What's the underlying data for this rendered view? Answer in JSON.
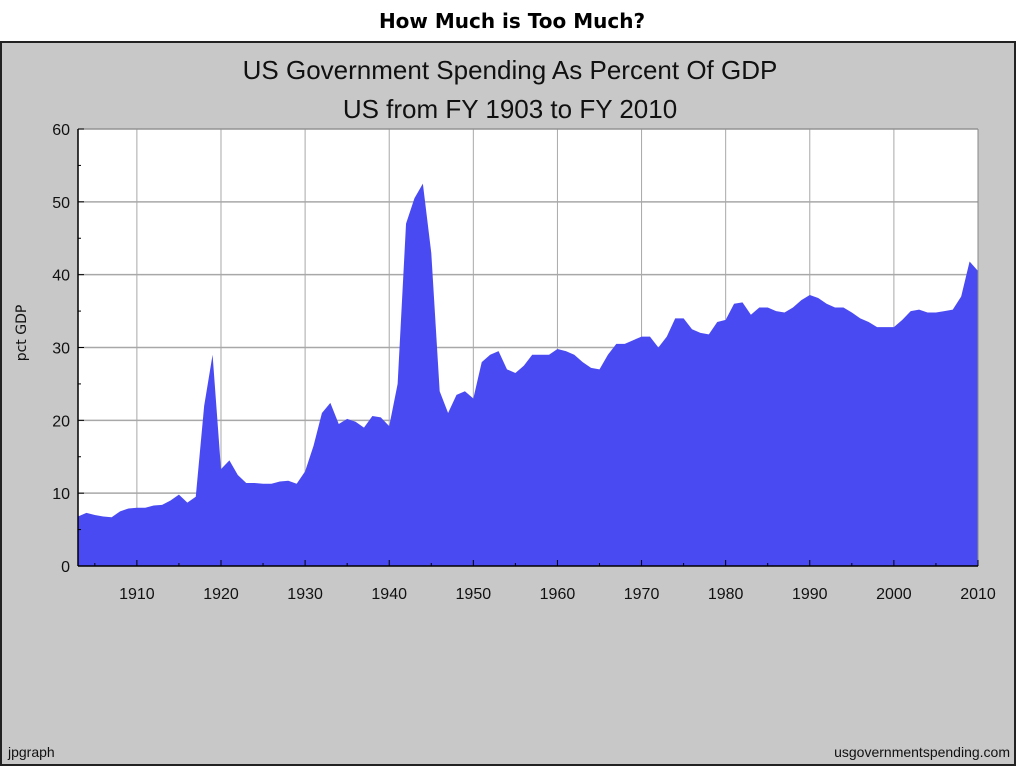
{
  "slide": {
    "title": "How Much is Too Much?"
  },
  "colors": {
    "area_fill": "#4a4af2",
    "plot_bg": "#ffffff",
    "frame_bg": "#c8c8c8",
    "grid": "#a8a8a8"
  },
  "footer": {
    "left": "jpgraph",
    "right": "usgovernmentspending.com"
  },
  "chart_data": {
    "type": "area",
    "title": "US Government Spending As Percent Of GDP",
    "subtitle": "US from FY 1903 to FY 2010",
    "xlabel": "",
    "ylabel": "pct GDP",
    "xlim": [
      1903,
      2010
    ],
    "ylim": [
      0,
      60
    ],
    "x_ticks": [
      1910,
      1920,
      1930,
      1940,
      1950,
      1960,
      1970,
      1980,
      1990,
      2000,
      2010
    ],
    "y_ticks": [
      0,
      10,
      20,
      30,
      40,
      50,
      60
    ],
    "grid": true,
    "legend": "none",
    "series": [
      {
        "x": [
          1903,
          1904,
          1905,
          1906,
          1907,
          1908,
          1909,
          1910,
          1911,
          1912,
          1913,
          1914,
          1915,
          1916,
          1917,
          1918,
          1919,
          1920,
          1921,
          1922,
          1923,
          1924,
          1925,
          1926,
          1927,
          1928,
          1929,
          1930,
          1931,
          1932,
          1933,
          1934,
          1935,
          1936,
          1937,
          1938,
          1939,
          1940,
          1941,
          1942,
          1943,
          1944,
          1945,
          1946,
          1947,
          1948,
          1949,
          1950,
          1951,
          1952,
          1953,
          1954,
          1955,
          1956,
          1957,
          1958,
          1959,
          1960,
          1961,
          1962,
          1963,
          1964,
          1965,
          1966,
          1967,
          1968,
          1969,
          1970,
          1971,
          1972,
          1973,
          1974,
          1975,
          1976,
          1977,
          1978,
          1979,
          1980,
          1981,
          1982,
          1983,
          1984,
          1985,
          1986,
          1987,
          1988,
          1989,
          1990,
          1991,
          1992,
          1993,
          1994,
          1995,
          1996,
          1997,
          1998,
          1999,
          2000,
          2001,
          2002,
          2003,
          2004,
          2005,
          2006,
          2007,
          2008,
          2009,
          2010
        ],
        "values": [
          6.8,
          7.3,
          7.0,
          6.8,
          6.7,
          7.5,
          7.9,
          8.0,
          8.0,
          8.3,
          8.4,
          9.0,
          9.8,
          8.7,
          9.5,
          22.0,
          29.0,
          13.3,
          14.5,
          12.5,
          11.4,
          11.4,
          11.3,
          11.3,
          11.6,
          11.7,
          11.3,
          13.0,
          16.5,
          21.0,
          22.4,
          19.5,
          20.2,
          19.8,
          19.0,
          20.6,
          20.4,
          19.2,
          25.0,
          47.0,
          50.5,
          52.5,
          43.0,
          24.0,
          21.0,
          23.5,
          24.0,
          23.0,
          28.0,
          29.0,
          29.5,
          27.0,
          26.5,
          27.5,
          29.0,
          29.0,
          29.0,
          29.8,
          29.5,
          29.0,
          28.0,
          27.2,
          27.0,
          29.0,
          30.5,
          30.5,
          31.0,
          31.5,
          31.5,
          30.0,
          31.5,
          34.0,
          34.0,
          32.5,
          32.0,
          31.8,
          33.5,
          33.8,
          36.0,
          36.2,
          34.5,
          35.5,
          35.5,
          35.0,
          34.8,
          35.5,
          36.5,
          37.2,
          36.8,
          36.0,
          35.5,
          35.5,
          34.8,
          34.0,
          33.5,
          32.8,
          32.8,
          32.8,
          33.8,
          35.0,
          35.2,
          34.8,
          34.8,
          35.0,
          35.2,
          37.0,
          41.8,
          40.5
        ]
      }
    ]
  }
}
